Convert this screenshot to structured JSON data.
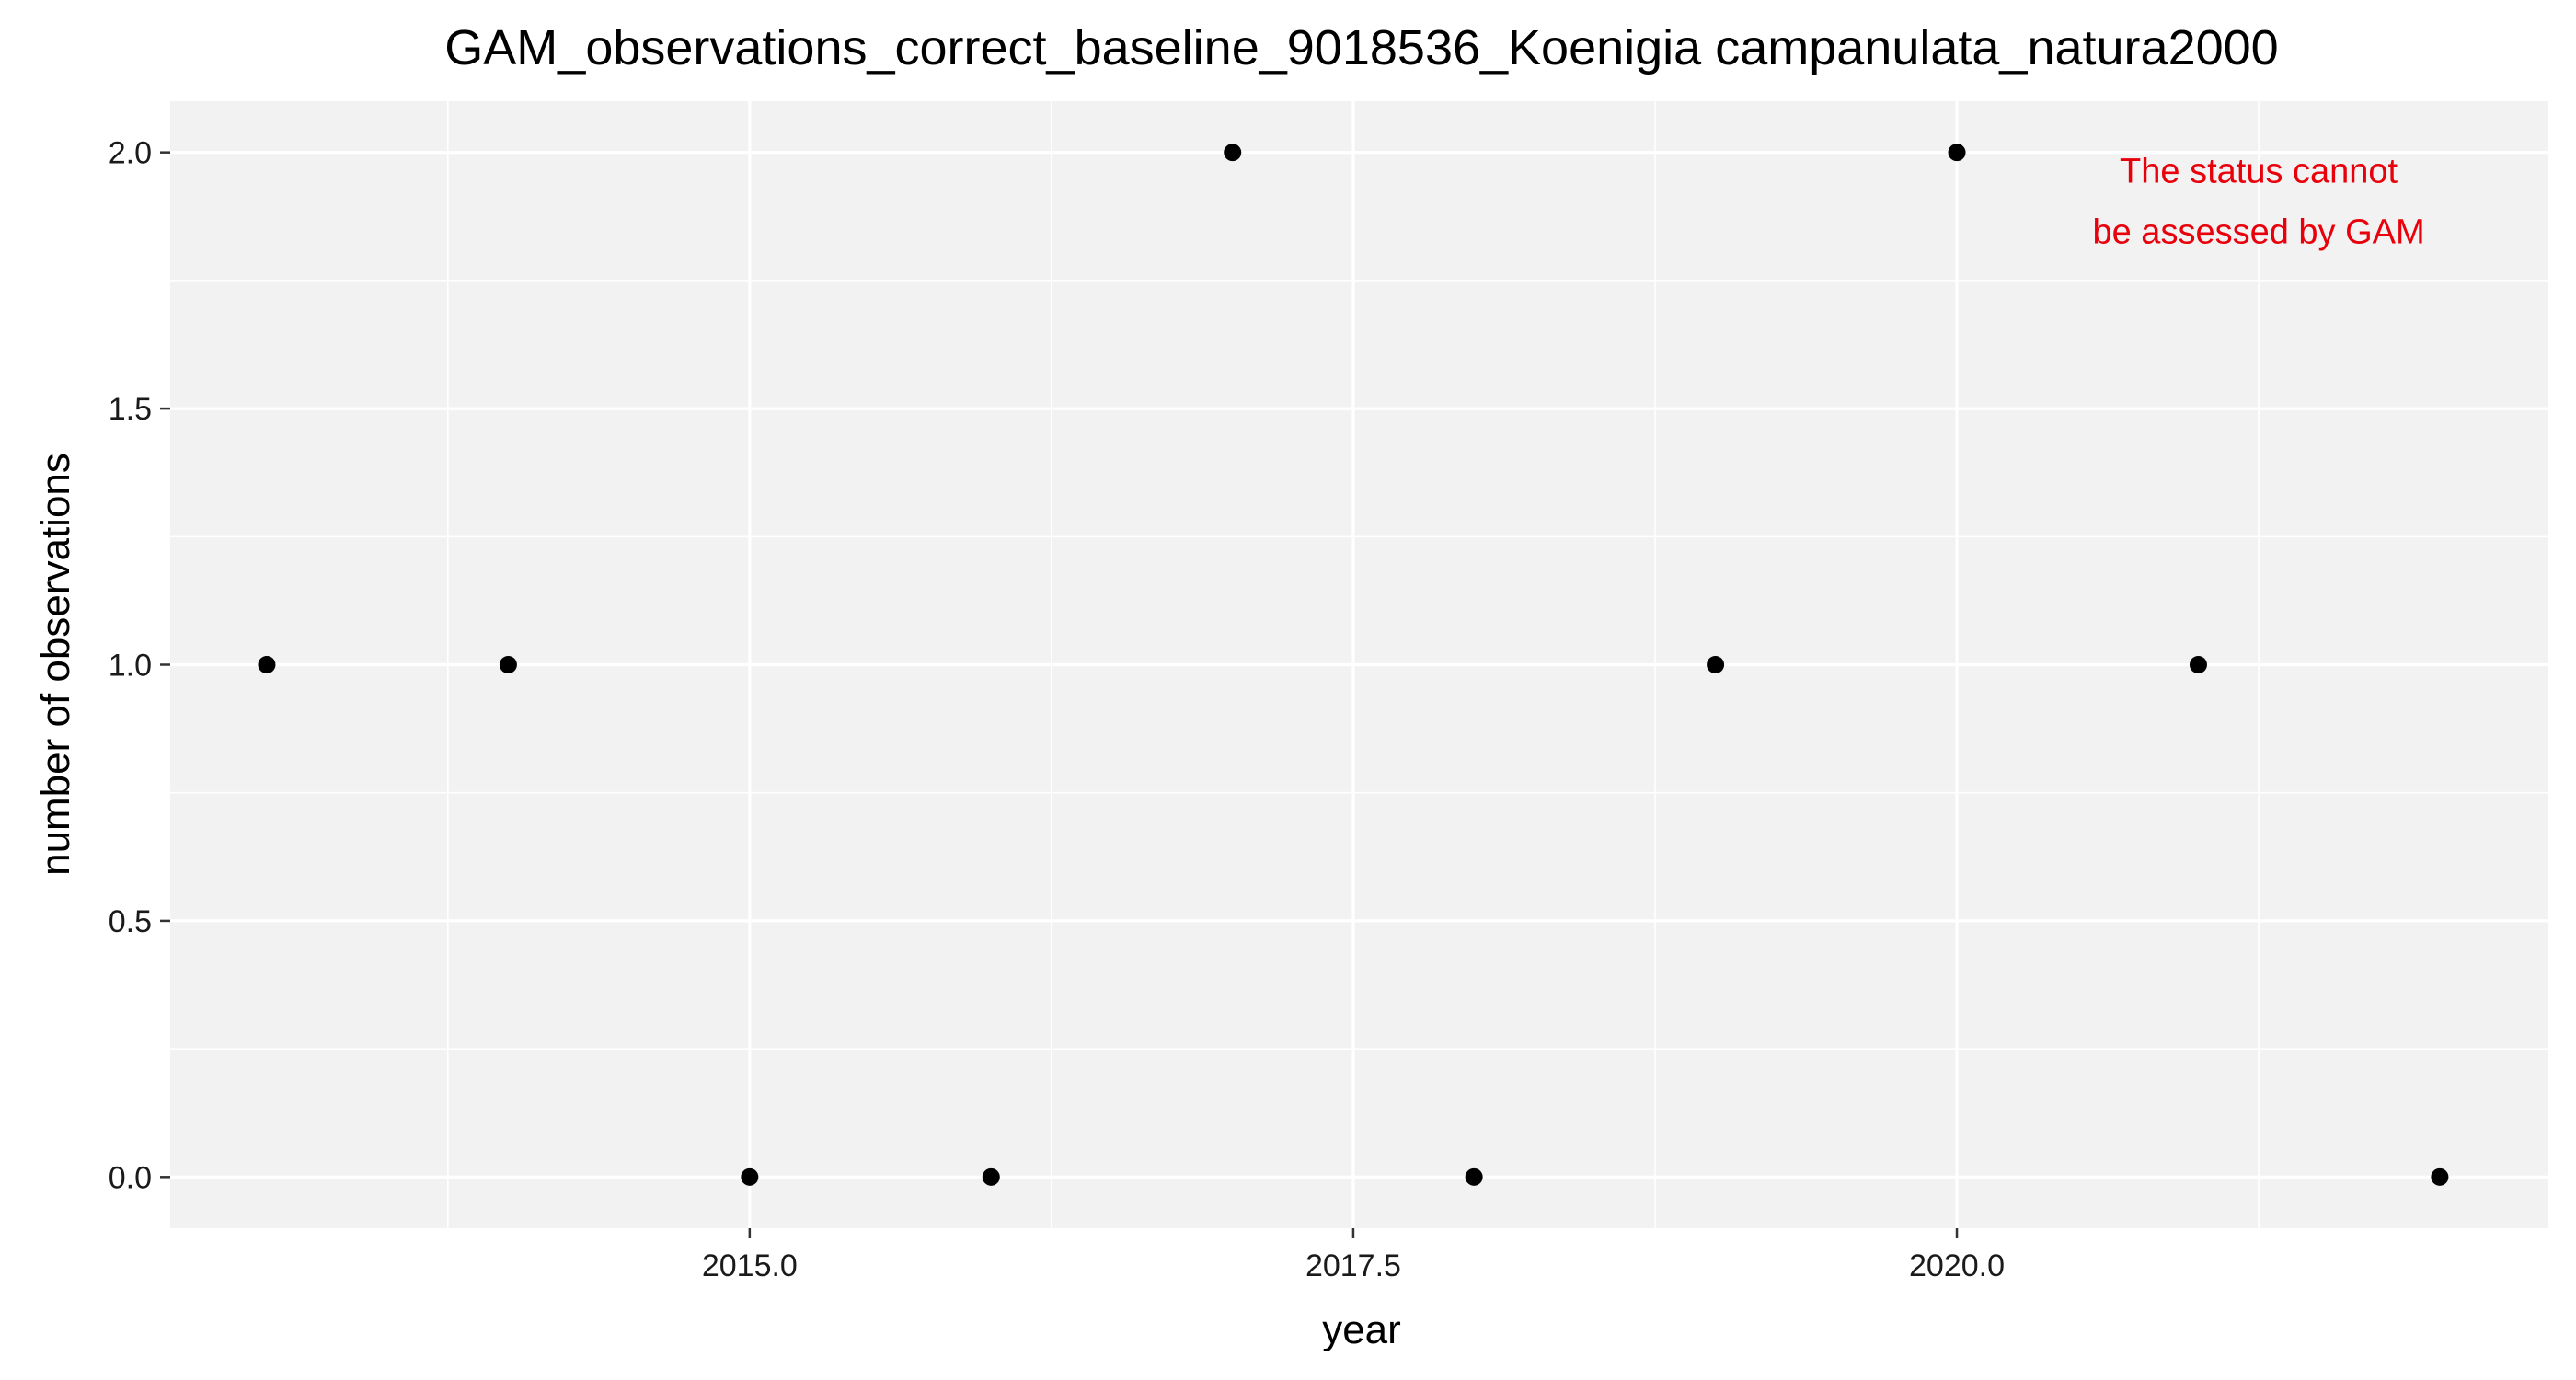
{
  "chart_data": {
    "type": "scatter",
    "title": "GAM_observations_correct_baseline_9018536_Koenigia campanulata_natura2000",
    "xlabel": "year",
    "ylabel": "number of observations",
    "x": [
      2013,
      2014,
      2015,
      2016,
      2017,
      2018,
      2019,
      2020,
      2021,
      2022
    ],
    "y": [
      1,
      1,
      0,
      0,
      2,
      0,
      1,
      2,
      1,
      0
    ],
    "xlim": [
      2012.6,
      2022.45
    ],
    "ylim": [
      -0.1,
      2.1
    ],
    "x_ticks": [
      2015.0,
      2017.5,
      2020.0
    ],
    "x_tick_labels": [
      "2015.0",
      "2017.5",
      "2020.0"
    ],
    "x_minor_ticks": [
      2013.75,
      2016.25,
      2018.75,
      2021.25
    ],
    "y_ticks": [
      0.0,
      0.5,
      1.0,
      1.5,
      2.0
    ],
    "y_tick_labels": [
      "0.0",
      "0.5",
      "1.0",
      "1.5",
      "2.0"
    ],
    "y_minor_ticks": [
      0.25,
      0.75,
      1.25,
      1.75
    ],
    "grid": true,
    "legend": "none",
    "point_color": "#000000",
    "panel_color": "#f2f2f2",
    "annotation": {
      "lines": [
        "The status cannot",
        "be assessed by GAM"
      ],
      "color": "#e8000b",
      "x": 2021.25,
      "y": 2.0
    }
  }
}
